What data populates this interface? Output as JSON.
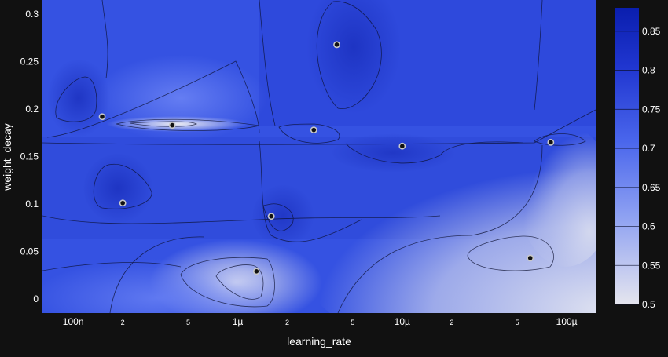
{
  "chart_data": {
    "type": "contour",
    "title": "",
    "xlabel": "learning_rate",
    "ylabel": "weight_decay",
    "x_scale": "log",
    "xlim": [
      6.5e-08,
      0.00015
    ],
    "ylim": [
      -0.015,
      0.315
    ],
    "x_ticks": [
      {
        "value": 1e-07,
        "label": "100n",
        "major": true
      },
      {
        "value": 2e-07,
        "label": "2",
        "major": false
      },
      {
        "value": 5e-07,
        "label": "5",
        "major": false
      },
      {
        "value": 1e-06,
        "label": "1µ",
        "major": true
      },
      {
        "value": 2e-06,
        "label": "2",
        "major": false
      },
      {
        "value": 5e-06,
        "label": "5",
        "major": false
      },
      {
        "value": 1e-05,
        "label": "10µ",
        "major": true
      },
      {
        "value": 2e-05,
        "label": "2",
        "major": false
      },
      {
        "value": 5e-05,
        "label": "5",
        "major": false
      },
      {
        "value": 0.0001,
        "label": "100µ",
        "major": true
      }
    ],
    "y_ticks": [
      {
        "value": 0,
        "label": "0"
      },
      {
        "value": 0.05,
        "label": "0.05"
      },
      {
        "value": 0.1,
        "label": "0.1"
      },
      {
        "value": 0.15,
        "label": "0.15"
      },
      {
        "value": 0.2,
        "label": "0.2"
      },
      {
        "value": 0.25,
        "label": "0.25"
      },
      {
        "value": 0.3,
        "label": "0.3"
      }
    ],
    "colorbar": {
      "range": [
        0.5,
        0.88
      ],
      "ticks": [
        {
          "value": 0.5,
          "label": "0.5"
        },
        {
          "value": 0.55,
          "label": "0.55"
        },
        {
          "value": 0.6,
          "label": "0.6"
        },
        {
          "value": 0.65,
          "label": "0.65"
        },
        {
          "value": 0.7,
          "label": "0.7"
        },
        {
          "value": 0.75,
          "label": "0.75"
        },
        {
          "value": 0.8,
          "label": "0.8"
        },
        {
          "value": 0.85,
          "label": "0.85"
        }
      ],
      "colorscale": [
        "#e5e5ee",
        "#5a75f0",
        "#2a45d8",
        "#0a1eae"
      ]
    },
    "points": [
      {
        "x": 1.5e-07,
        "y": 0.192
      },
      {
        "x": 4e-07,
        "y": 0.183
      },
      {
        "x": 2.9e-06,
        "y": 0.178
      },
      {
        "x": 4e-06,
        "y": 0.268
      },
      {
        "x": 1e-05,
        "y": 0.161
      },
      {
        "x": 8e-05,
        "y": 0.165
      },
      {
        "x": 2e-07,
        "y": 0.101
      },
      {
        "x": 1.6e-06,
        "y": 0.087
      },
      {
        "x": 1.3e-06,
        "y": 0.029
      },
      {
        "x": 6e-05,
        "y": 0.043
      }
    ]
  }
}
